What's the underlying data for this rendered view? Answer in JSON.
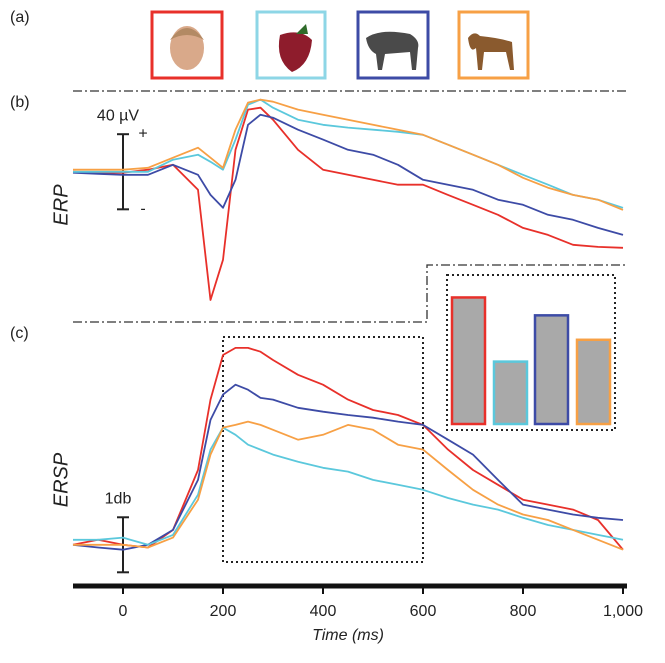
{
  "header": {
    "label": "(a)"
  },
  "chart_data": [
    {
      "type": "line",
      "title": "(b)",
      "ylabel": "ERP",
      "x": [
        -100,
        -50,
        0,
        50,
        100,
        150,
        175,
        200,
        225,
        250,
        275,
        300,
        350,
        400,
        450,
        500,
        550,
        600,
        650,
        700,
        750,
        800,
        850,
        900,
        950,
        1000
      ],
      "xlim": [
        -100,
        1000
      ],
      "ylim": [
        -80,
        43
      ],
      "scale_bar": {
        "value": 40,
        "label": "40 µV"
      },
      "scale_signs": [
        "+",
        "-"
      ],
      "series": [
        {
          "color": "#e8302a",
          "values": [
            0,
            -0.5,
            -0.5,
            1.1,
            3.7,
            -9.6,
            -68.3,
            -46.9,
            11.7,
            33.1,
            34.1,
            27.7,
            11.7,
            1.1,
            -1.6,
            -4.3,
            -6.9,
            -6.9,
            -12.3,
            -17.6,
            -22.9,
            -29.9,
            -33.6,
            -38.9,
            -40,
            -40.5
          ]
        },
        {
          "color": "#3d4ba6",
          "values": [
            -0.5,
            -1.1,
            -1.6,
            -1.6,
            3.7,
            -1.6,
            -12.3,
            -19.2,
            -4.3,
            25,
            30.4,
            28.8,
            22.4,
            17.1,
            11.7,
            9.1,
            3.7,
            -4.3,
            -6.9,
            -9.6,
            -14.9,
            -17.6,
            -22.9,
            -25.6,
            -29.9,
            -33.6
          ]
        },
        {
          "color": "#5bc8dc",
          "values": [
            0,
            0,
            0,
            0,
            6.4,
            9.1,
            5.3,
            1.1,
            17.1,
            35.7,
            38.4,
            34.1,
            27.7,
            25,
            23.5,
            22.4,
            21.3,
            19.7,
            14.4,
            9.1,
            3.7,
            -1.6,
            -6.9,
            -12.3,
            -14.9,
            -19.2
          ]
        },
        {
          "color": "#f7a045",
          "values": [
            1.1,
            1.1,
            1.1,
            2.1,
            7.5,
            12.8,
            7.5,
            2.1,
            22.4,
            36.8,
            38.4,
            37.3,
            33.1,
            30.4,
            27.7,
            25,
            22.4,
            19.7,
            14.4,
            9.1,
            3.7,
            -3.2,
            -8.5,
            -12.3,
            -14.9,
            -20.3
          ]
        }
      ]
    },
    {
      "type": "line",
      "title": "(c)",
      "ylabel": "ERSP",
      "xlabel": "Time (ms)",
      "x": [
        -100,
        -50,
        0,
        50,
        100,
        150,
        175,
        200,
        225,
        250,
        275,
        300,
        350,
        400,
        450,
        500,
        550,
        600,
        650,
        700,
        750,
        800,
        850,
        900,
        950,
        1000
      ],
      "xlim": [
        -100,
        1000
      ],
      "xticks": [
        0,
        200,
        400,
        600,
        800,
        {
          "value": 1000,
          "label": "1,000"
        }
      ],
      "ylim": [
        -0.64,
        4.05
      ],
      "scale_bar": {
        "value": 1,
        "label": "1db"
      },
      "highlight_window": [
        200,
        600
      ],
      "series": [
        {
          "color": "#e8302a",
          "values": [
            0,
            0.09,
            0,
            -0.05,
            0.27,
            1.36,
            2.64,
            3.45,
            3.58,
            3.58,
            3.51,
            3.36,
            3.09,
            2.91,
            2.64,
            2.45,
            2.36,
            2.18,
            1.73,
            1.36,
            1.09,
            0.82,
            0.73,
            0.64,
            0.45,
            -0.09
          ]
        },
        {
          "color": "#3d4ba6",
          "values": [
            0,
            -0.05,
            -0.09,
            0,
            0.27,
            1.18,
            2.27,
            2.73,
            2.91,
            2.82,
            2.67,
            2.64,
            2.49,
            2.42,
            2.36,
            2.31,
            2.24,
            2.18,
            1.91,
            1.64,
            1.18,
            0.73,
            0.64,
            0.55,
            0.49,
            0.45
          ]
        },
        {
          "color": "#5bc8dc",
          "values": [
            0.09,
            0.09,
            0.13,
            0,
            0.18,
            0.91,
            1.73,
            2.13,
            2,
            1.82,
            1.73,
            1.64,
            1.51,
            1.4,
            1.33,
            1.18,
            1.09,
            1,
            0.85,
            0.73,
            0.64,
            0.49,
            0.36,
            0.27,
            0.18,
            0.09
          ]
        },
        {
          "color": "#f7a045",
          "values": [
            0,
            0,
            0,
            -0.05,
            0.13,
            0.82,
            1.64,
            2.13,
            2.18,
            2.24,
            2.18,
            2.09,
            1.91,
            2,
            2.18,
            2.09,
            1.82,
            1.73,
            1.36,
            1,
            0.73,
            0.55,
            0.45,
            0.27,
            0.09,
            -0.09
          ]
        }
      ]
    },
    {
      "type": "bar",
      "ylim": [
        0,
        3.3
      ],
      "values": [
        2.9,
        1.43,
        2.49,
        1.93
      ],
      "colors": [
        "#e8302a",
        "#5bc8dc",
        "#3d4ba6",
        "#f7a045"
      ],
      "fill": "#a9a9a9"
    }
  ]
}
